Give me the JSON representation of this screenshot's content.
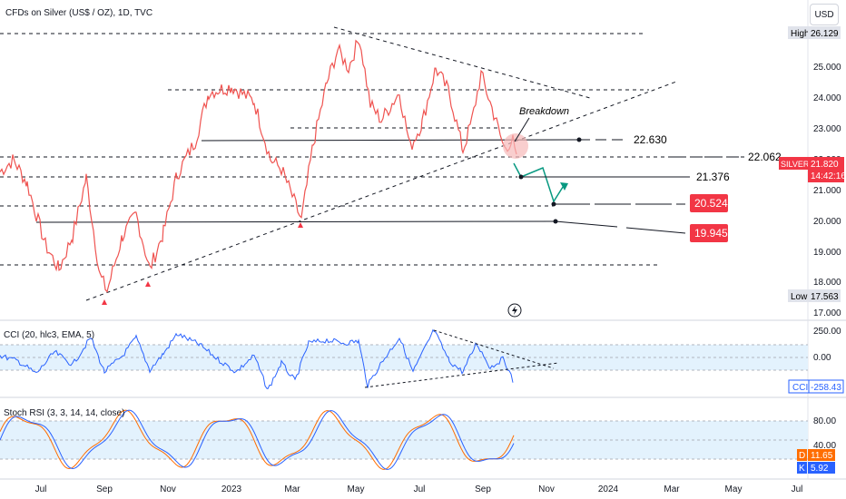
{
  "header": {
    "title": "CFDs on Silver (US$ / OZ), 1D, TVC",
    "currency_button": "USD"
  },
  "colors": {
    "up": "#26a69a",
    "down": "#ef5350",
    "cci_line": "#2962ff",
    "stoch_k": "#2962ff",
    "stoch_d": "#ff6d00",
    "band_fill": "#e3f2fd",
    "red_badge": "#f23645",
    "blue_badge": "#2962ff",
    "arrow_green": "#089981",
    "arrow_red": "#f23645"
  },
  "main_axis": {
    "ticks": [
      "26.129",
      "25.000",
      "24.000",
      "23.000",
      "22.000",
      "21.000",
      "20.000",
      "19.000",
      "18.000",
      "17.563",
      "17.000"
    ],
    "high_label": "High",
    "high_value": "26.129",
    "low_label": "Low",
    "low_value": "17.563",
    "symbol_label": "SILVER",
    "symbol_price": "21.820",
    "symbol_time": "14:42:16"
  },
  "annotations": {
    "breakdown": "Breakdown",
    "level1": "22.630",
    "level2": "22.062",
    "level3": "21.376",
    "level4": "20.524",
    "level5": "19.945"
  },
  "cci": {
    "label": "CCI (20, hlc3, EMA, 5)",
    "ticks": [
      "250.00",
      "0.00"
    ],
    "badge_name": "CCI",
    "badge_value": "-258.43"
  },
  "stoch": {
    "label": "Stoch RSI (3, 3, 14, 14, close)",
    "ticks": [
      "80.00",
      "40.00"
    ],
    "d_name": "D",
    "d_value": "11.65",
    "k_name": "K",
    "k_value": "5.92"
  },
  "x_axis": {
    "labels": [
      "Jul",
      "Sep",
      "Nov",
      "2023",
      "Mar",
      "May",
      "Jul",
      "Sep",
      "Nov",
      "2024",
      "Mar",
      "May",
      "Jul"
    ]
  },
  "chart_data": {
    "type": "line",
    "title": "CFDs on Silver (US$ / OZ), 1D, TVC",
    "ylim": [
      17,
      26.4
    ],
    "approx_price_path": {
      "x": [
        "Jul",
        "Sep",
        "Nov",
        "2023",
        "Mar",
        "May",
        "Jul",
        "Sep"
      ],
      "y": [
        21.0,
        18.0,
        20.5,
        24.2,
        20.0,
        26.1,
        25.0,
        22.0
      ]
    },
    "horizontal_levels": [
      22.63,
      22.062,
      21.376,
      20.524,
      19.945
    ],
    "high": 26.129,
    "low": 17.563,
    "last_price": 21.82,
    "cci_last": -258.43,
    "stoch_d_last": 11.65,
    "stoch_k_last": 5.92
  }
}
